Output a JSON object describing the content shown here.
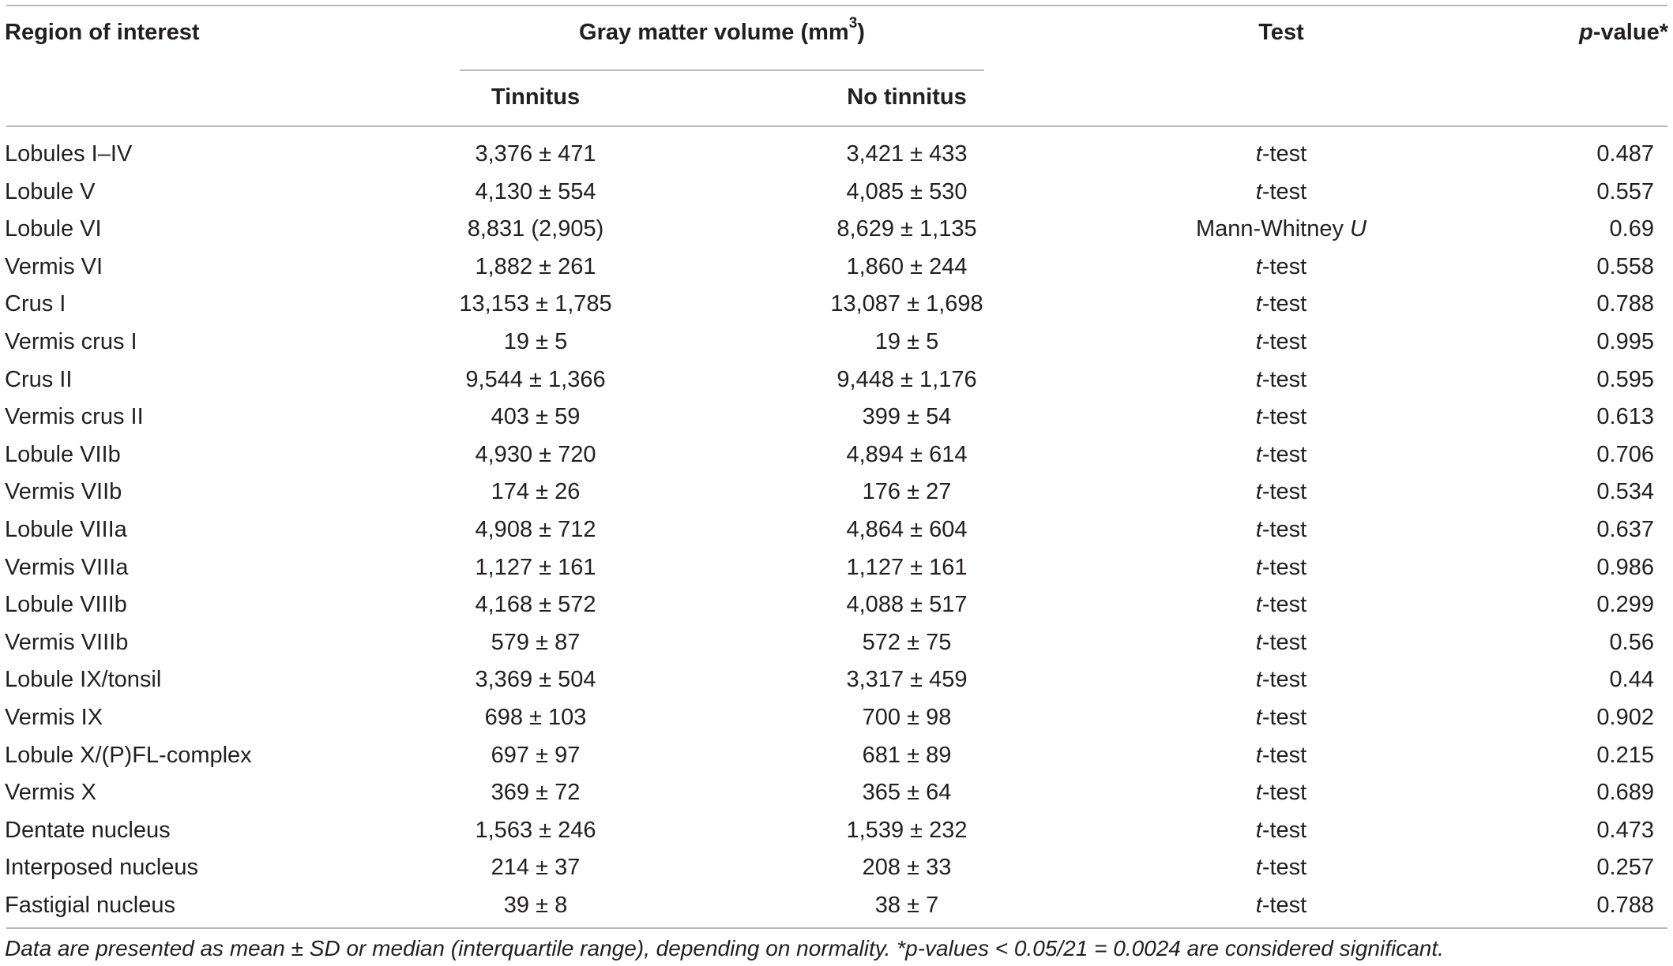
{
  "table": {
    "headers": {
      "region": "Region of interest",
      "gmv_main": "Gray matter volume (mm",
      "gmv_sup": "3",
      "gmv_close": ")",
      "tinnitus": "Tinnitus",
      "no_tinnitus": "No tinnitus",
      "test": "Test",
      "p_italic": "p",
      "p_rest": "-value*"
    },
    "rows": [
      {
        "region": "Lobules I–IV",
        "tinnitus": "3,376 ± 471",
        "no_tinnitus": "3,421 ± 433",
        "test_a": "t",
        "test_b": "-test",
        "p": "0.487"
      },
      {
        "region": "Lobule V",
        "tinnitus": "4,130 ± 554",
        "no_tinnitus": "4,085 ± 530",
        "test_a": "t",
        "test_b": "-test",
        "p": "0.557"
      },
      {
        "region": "Lobule VI",
        "tinnitus": "8,831 (2,905)",
        "no_tinnitus": "8,629 ± 1,135",
        "test_a": "Mann-Whitney ",
        "test_b": "U",
        "p": "0.69"
      },
      {
        "region": "Vermis VI",
        "tinnitus": "1,882 ± 261",
        "no_tinnitus": "1,860 ± 244",
        "test_a": "t",
        "test_b": "-test",
        "p": "0.558"
      },
      {
        "region": "Crus I",
        "tinnitus": "13,153 ± 1,785",
        "no_tinnitus": "13,087 ± 1,698",
        "test_a": "t",
        "test_b": "-test",
        "p": "0.788"
      },
      {
        "region": "Vermis crus I",
        "tinnitus": "19 ± 5",
        "no_tinnitus": "19 ± 5",
        "test_a": "t",
        "test_b": "-test",
        "p": "0.995"
      },
      {
        "region": "Crus II",
        "tinnitus": "9,544 ± 1,366",
        "no_tinnitus": "9,448 ± 1,176",
        "test_a": "t",
        "test_b": "-test",
        "p": "0.595"
      },
      {
        "region": "Vermis crus II",
        "tinnitus": "403 ± 59",
        "no_tinnitus": "399 ± 54",
        "test_a": "t",
        "test_b": "-test",
        "p": "0.613"
      },
      {
        "region": "Lobule VIIb",
        "tinnitus": "4,930 ± 720",
        "no_tinnitus": "4,894 ± 614",
        "test_a": "t",
        "test_b": "-test",
        "p": "0.706"
      },
      {
        "region": "Vermis VIIb",
        "tinnitus": "174 ± 26",
        "no_tinnitus": "176 ± 27",
        "test_a": "t",
        "test_b": "-test",
        "p": "0.534"
      },
      {
        "region": "Lobule VIIIa",
        "tinnitus": "4,908 ± 712",
        "no_tinnitus": "4,864 ± 604",
        "test_a": "t",
        "test_b": "-test",
        "p": "0.637"
      },
      {
        "region": "Vermis VIIIa",
        "tinnitus": "1,127 ± 161",
        "no_tinnitus": "1,127 ± 161",
        "test_a": "t",
        "test_b": "-test",
        "p": "0.986"
      },
      {
        "region": "Lobule VIIIb",
        "tinnitus": "4,168 ± 572",
        "no_tinnitus": "4,088 ± 517",
        "test_a": "t",
        "test_b": "-test",
        "p": "0.299"
      },
      {
        "region": "Vermis VIIIb",
        "tinnitus": "579 ± 87",
        "no_tinnitus": "572 ± 75",
        "test_a": "t",
        "test_b": "-test",
        "p": "0.56"
      },
      {
        "region": "Lobule IX/tonsil",
        "tinnitus": "3,369 ± 504",
        "no_tinnitus": "3,317 ± 459",
        "test_a": "t",
        "test_b": "-test",
        "p": "0.44"
      },
      {
        "region": "Vermis IX",
        "tinnitus": "698 ± 103",
        "no_tinnitus": "700 ± 98",
        "test_a": "t",
        "test_b": "-test",
        "p": "0.902"
      },
      {
        "region": "Lobule X/(P)FL-complex",
        "tinnitus": "697 ± 97",
        "no_tinnitus": "681 ± 89",
        "test_a": "t",
        "test_b": "-test",
        "p": "0.215"
      },
      {
        "region": "Vermis X",
        "tinnitus": "369 ± 72",
        "no_tinnitus": "365 ± 64",
        "test_a": "t",
        "test_b": "-test",
        "p": "0.689"
      },
      {
        "region": "Dentate nucleus",
        "tinnitus": "1,563 ± 246",
        "no_tinnitus": "1,539 ± 232",
        "test_a": "t",
        "test_b": "-test",
        "p": "0.473"
      },
      {
        "region": "Interposed nucleus",
        "tinnitus": "214 ± 37",
        "no_tinnitus": "208 ± 33",
        "test_a": "t",
        "test_b": "-test",
        "p": "0.257"
      },
      {
        "region": "Fastigial nucleus",
        "tinnitus": "39 ± 8",
        "no_tinnitus": "38 ± 7",
        "test_a": "t",
        "test_b": "-test",
        "p": "0.788"
      }
    ]
  },
  "footnote": "Data are presented as mean ± SD or median (interquartile range), depending on normality. *p-values < 0.05/21 = 0.0024 are considered significant."
}
